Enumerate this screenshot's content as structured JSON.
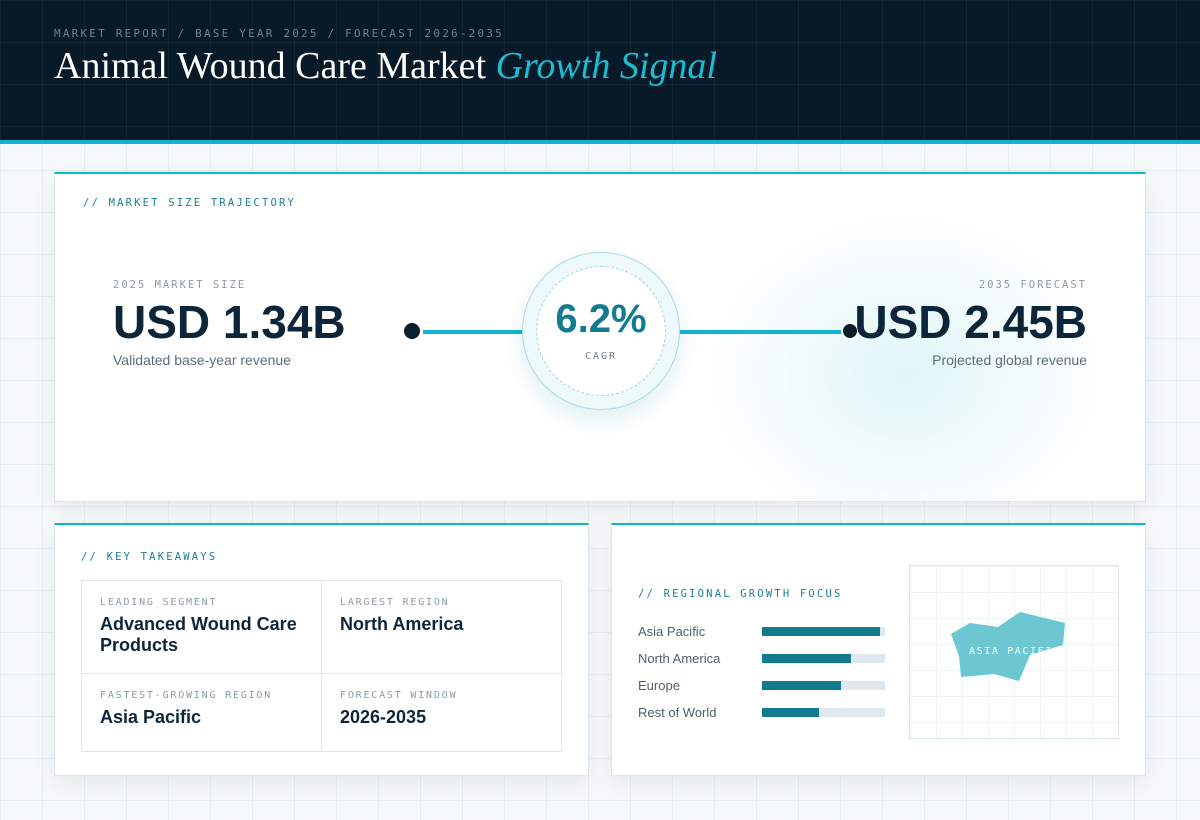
{
  "header": {
    "kicker": "MARKET REPORT / BASE YEAR 2025 / FORECAST 2026-2035",
    "title_main": "Animal Wound Care Market",
    "title_accent": "Growth Signal"
  },
  "market": {
    "section_label": "// MARKET SIZE TRAJECTORY",
    "base": {
      "label": "2025 MARKET SIZE",
      "value": "USD 1.34B",
      "caption": "Validated base-year revenue"
    },
    "cagr": {
      "value": "6.2%",
      "label": "CAGR"
    },
    "forecast": {
      "label": "2035 FORECAST",
      "value": "USD 2.45B",
      "caption": "Projected global revenue"
    }
  },
  "takeaways": {
    "section_label": "// KEY TAKEAWAYS",
    "items": [
      {
        "key": "LEADING SEGMENT",
        "value": "Advanced Wound Care Products"
      },
      {
        "key": "LARGEST REGION",
        "value": "North America"
      },
      {
        "key": "FASTEST-GROWING REGION",
        "value": "Asia Pacific"
      },
      {
        "key": "FORECAST WINDOW",
        "value": "2026-2035"
      }
    ]
  },
  "regional": {
    "section_label": "// REGIONAL GROWTH FOCUS",
    "bars": [
      {
        "name": "Asia Pacific",
        "level": 0.96
      },
      {
        "name": "North America",
        "level": 0.72
      },
      {
        "name": "Europe",
        "level": 0.64
      },
      {
        "name": "Rest of World",
        "level": 0.46
      }
    ],
    "map_label": "ASIA PACIFIC",
    "colors": {
      "bar": "#137b8f",
      "map_shape": "#6cc7d3"
    }
  }
}
